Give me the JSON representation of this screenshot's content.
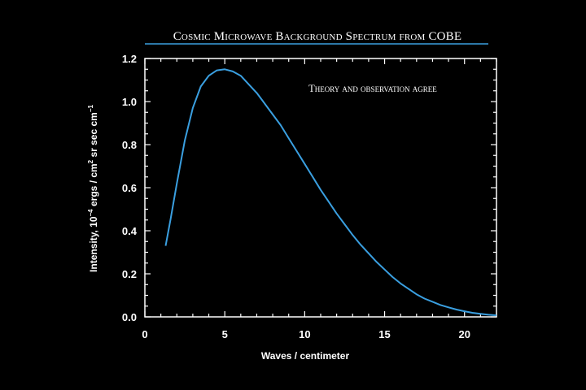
{
  "chart_data": {
    "type": "line",
    "title": "Cosmic Microwave Background Spectrum from COBE",
    "annotation": "Theory and observation agree",
    "xlabel": "Waves / centimeter",
    "ylabel": {
      "prefix": "Intensity, 10",
      "exp1": "−4",
      "mid": " ergs / cm",
      "exp2": "2",
      "mid2": " sr sec cm",
      "exp3": "−1"
    },
    "xlim": [
      0,
      22
    ],
    "ylim": [
      0,
      1.2
    ],
    "x_ticks": [
      "0",
      "5",
      "10",
      "15",
      "20"
    ],
    "x_tick_values": [
      0,
      5,
      10,
      15,
      20
    ],
    "y_ticks": [
      "0.0",
      "0.2",
      "0.4",
      "0.6",
      "0.8",
      "1.0",
      "1.2"
    ],
    "y_tick_values": [
      0,
      0.2,
      0.4,
      0.6,
      0.8,
      1.0,
      1.2
    ],
    "grid": false,
    "line_color": "#3a9fe0",
    "title_rule_color": "#3a9fe0",
    "series": [
      {
        "x": [
          1.3,
          1.6,
          2.0,
          2.5,
          3.0,
          3.5,
          4.0,
          4.5,
          5.0,
          5.5,
          6.0,
          6.5,
          7.0,
          7.5,
          8.0,
          8.5,
          9.0,
          9.5,
          10.0,
          10.5,
          11.0,
          11.5,
          12.0,
          12.5,
          13.0,
          13.5,
          14.0,
          14.5,
          15.0,
          15.5,
          16.0,
          16.5,
          17.0,
          17.5,
          18.0,
          18.5,
          19.0,
          19.5,
          20.0,
          20.5,
          21.0,
          21.5,
          22.0
        ],
        "y": [
          0.33,
          0.45,
          0.62,
          0.82,
          0.97,
          1.07,
          1.12,
          1.145,
          1.15,
          1.14,
          1.12,
          1.08,
          1.04,
          0.99,
          0.94,
          0.89,
          0.83,
          0.77,
          0.71,
          0.65,
          0.59,
          0.535,
          0.48,
          0.43,
          0.38,
          0.335,
          0.295,
          0.255,
          0.22,
          0.185,
          0.155,
          0.13,
          0.105,
          0.085,
          0.07,
          0.055,
          0.044,
          0.034,
          0.026,
          0.019,
          0.014,
          0.01,
          0.007
        ]
      }
    ]
  }
}
